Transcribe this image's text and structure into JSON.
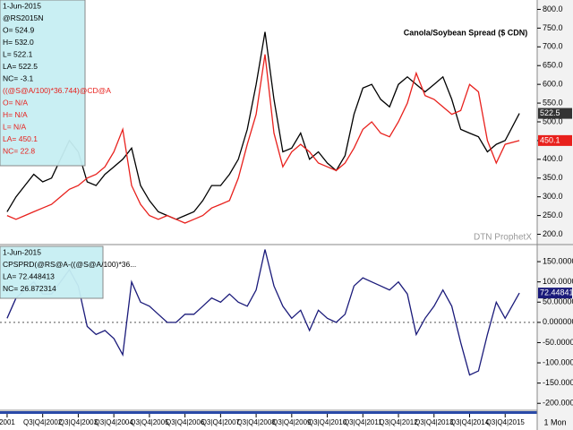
{
  "chart_data": [
    {
      "type": "line",
      "title": "Canola/Soybean Spread ($ CDN)",
      "watermark": "DTN ProphetX",
      "info_lines": [
        {
          "text": "1-Jun-2015",
          "color": "#000000"
        },
        {
          "text": "@RS2015N",
          "color": "#000000"
        },
        {
          "text": "O= 524.9",
          "color": "#000000"
        },
        {
          "text": "H= 532.0",
          "color": "#000000"
        },
        {
          "text": "L= 522.1",
          "color": "#000000"
        },
        {
          "text": "LA= 522.5",
          "color": "#000000"
        },
        {
          "text": "NC= -3.1",
          "color": "#000000"
        },
        {
          "text": "((@S@A/100)*36.744)@CD@A",
          "color": "#e8201c"
        },
        {
          "text": "O= N/A",
          "color": "#e8201c"
        },
        {
          "text": "H= N/A",
          "color": "#e8201c"
        },
        {
          "text": "L= N/A",
          "color": "#e8201c"
        },
        {
          "text": "LA= 450.1",
          "color": "#e8201c"
        },
        {
          "text": "NC= 22.8",
          "color": "#e8201c"
        }
      ],
      "x": [
        2001.0,
        2001.25,
        2001.5,
        2001.75,
        2002.0,
        2002.25,
        2002.5,
        2002.75,
        2003.0,
        2003.25,
        2003.5,
        2003.75,
        2004.0,
        2004.25,
        2004.5,
        2004.75,
        2005.0,
        2005.25,
        2005.5,
        2005.75,
        2006.0,
        2006.25,
        2006.5,
        2006.75,
        2007.0,
        2007.25,
        2007.5,
        2007.75,
        2008.0,
        2008.25,
        2008.5,
        2008.75,
        2009.0,
        2009.25,
        2009.5,
        2009.75,
        2010.0,
        2010.25,
        2010.5,
        2010.75,
        2011.0,
        2011.25,
        2011.5,
        2011.75,
        2012.0,
        2012.25,
        2012.5,
        2012.75,
        2013.0,
        2013.25,
        2013.5,
        2013.75,
        2014.0,
        2014.25,
        2014.5,
        2014.75,
        2015.0,
        2015.4
      ],
      "series": [
        {
          "name": "@RS2015N",
          "color": "#000000",
          "values": [
            260,
            300,
            330,
            360,
            340,
            350,
            400,
            450,
            420,
            340,
            330,
            360,
            380,
            400,
            430,
            330,
            290,
            260,
            250,
            240,
            250,
            260,
            290,
            330,
            330,
            360,
            400,
            480,
            600,
            740,
            560,
            420,
            430,
            470,
            400,
            420,
            390,
            370,
            410,
            520,
            590,
            600,
            560,
            540,
            600,
            620,
            600,
            580,
            600,
            620,
            560,
            480,
            470,
            460,
            420,
            440,
            450,
            522.5
          ]
        },
        {
          "name": "((@S@A/100)*36.744)@CD@A",
          "color": "#e8201c",
          "values": [
            250,
            240,
            250,
            260,
            270,
            280,
            300,
            320,
            330,
            350,
            360,
            380,
            420,
            480,
            330,
            280,
            250,
            240,
            250,
            240,
            230,
            240,
            250,
            270,
            280,
            290,
            350,
            440,
            520,
            680,
            470,
            380,
            420,
            440,
            420,
            390,
            380,
            370,
            390,
            430,
            480,
            500,
            470,
            460,
            500,
            550,
            630,
            570,
            560,
            540,
            520,
            530,
            600,
            580,
            450,
            390,
            440,
            450.1
          ]
        }
      ],
      "xlim": [
        2000.8,
        2015.9
      ],
      "ylim": [
        175,
        825
      ],
      "yticks": [
        {
          "value": 200,
          "label": "200.0"
        },
        {
          "value": 250,
          "label": "250.0"
        },
        {
          "value": 300,
          "label": "300.0"
        },
        {
          "value": 350,
          "label": "350.0"
        },
        {
          "value": 400,
          "label": "400.0"
        },
        {
          "value": 450,
          "label": "450.0"
        },
        {
          "value": 500,
          "label": "500.0"
        },
        {
          "value": 550,
          "label": "550.0"
        },
        {
          "value": 600,
          "label": "600.0"
        },
        {
          "value": 650,
          "label": "650.0"
        },
        {
          "value": 700,
          "label": "700.0"
        },
        {
          "value": 750,
          "label": "750.0"
        },
        {
          "value": 800,
          "label": "800.0"
        }
      ]
    },
    {
      "type": "line",
      "info_lines": [
        {
          "text": "1-Jun-2015",
          "color": "#000000"
        },
        {
          "text": "CPSPRD(@RS@A-((@S@A/100)*36...",
          "color": "#000000"
        },
        {
          "text": "LA= 72.448413",
          "color": "#000000"
        },
        {
          "text": "NC= 26.872314",
          "color": "#000000"
        }
      ],
      "x": [
        2001.0,
        2001.25,
        2001.5,
        2001.75,
        2002.0,
        2002.25,
        2002.5,
        2002.75,
        2003.0,
        2003.25,
        2003.5,
        2003.75,
        2004.0,
        2004.25,
        2004.5,
        2004.75,
        2005.0,
        2005.25,
        2005.5,
        2005.75,
        2006.0,
        2006.25,
        2006.5,
        2006.75,
        2007.0,
        2007.25,
        2007.5,
        2007.75,
        2008.0,
        2008.25,
        2008.5,
        2008.75,
        2009.0,
        2009.25,
        2009.5,
        2009.75,
        2010.0,
        2010.25,
        2010.5,
        2010.75,
        2011.0,
        2011.25,
        2011.5,
        2011.75,
        2012.0,
        2012.25,
        2012.5,
        2012.75,
        2013.0,
        2013.25,
        2013.5,
        2013.75,
        2014.0,
        2014.25,
        2014.5,
        2014.75,
        2015.0,
        2015.4
      ],
      "series": [
        {
          "name": "CPSPRD",
          "color": "#1a1a7a",
          "values": [
            10,
            60,
            80,
            100,
            70,
            70,
            100,
            130,
            90,
            -10,
            -30,
            -20,
            -40,
            -80,
            100,
            50,
            40,
            20,
            0,
            0,
            20,
            20,
            40,
            60,
            50,
            70,
            50,
            40,
            80,
            180,
            90,
            40,
            10,
            30,
            -20,
            30,
            10,
            0,
            20,
            90,
            110,
            100,
            90,
            80,
            100,
            70,
            -30,
            10,
            40,
            80,
            40,
            -50,
            -130,
            -120,
            -30,
            50,
            10,
            72.448413
          ]
        }
      ],
      "xlim": [
        2000.8,
        2015.9
      ],
      "ylim": [
        -215,
        190
      ],
      "yticks": [
        {
          "value": -200,
          "label": "-200.000000"
        },
        {
          "value": -150,
          "label": "-150.000000"
        },
        {
          "value": -100,
          "label": "-100.000000"
        },
        {
          "value": -50,
          "label": "-50.000000"
        },
        {
          "value": 0,
          "label": "0.000000"
        },
        {
          "value": 50,
          "label": "50.000000"
        },
        {
          "value": 100,
          "label": "100.000000"
        },
        {
          "value": 150,
          "label": "150.000000"
        }
      ],
      "zero_line": true,
      "xticks": [
        {
          "value": 2001,
          "label": "2001"
        },
        {
          "value": 2002,
          "label": "Q3|Q4|2002"
        },
        {
          "value": 2003,
          "label": "Q3|Q4|2003"
        },
        {
          "value": 2004,
          "label": "Q3|Q4|2004"
        },
        {
          "value": 2005,
          "label": "Q3|Q4|2005"
        },
        {
          "value": 2006,
          "label": "Q3|Q4|2006"
        },
        {
          "value": 2007,
          "label": "Q3|Q4|2007"
        },
        {
          "value": 2008,
          "label": "Q3|Q4|2008"
        },
        {
          "value": 2009,
          "label": "Q3|Q4|2009"
        },
        {
          "value": 2010,
          "label": "Q3|Q4|2010"
        },
        {
          "value": 2011,
          "label": "Q3|Q4|2011"
        },
        {
          "value": 2012,
          "label": "Q3|Q4|2012"
        },
        {
          "value": 2013,
          "label": "Q3|Q4|2013"
        },
        {
          "value": 2014,
          "label": "Q3|Q4|2014"
        },
        {
          "value": 2015,
          "label": "Q3|Q4|2015"
        }
      ],
      "period_label": "1 Mon"
    }
  ]
}
